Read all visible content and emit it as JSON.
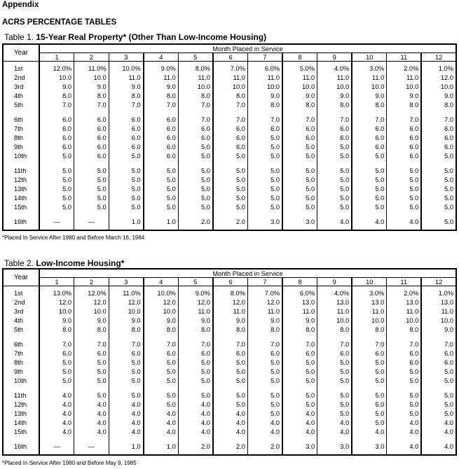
{
  "header": {
    "appendix": "Appendix",
    "title": "ACRS PERCENTAGE TABLES"
  },
  "tables": [
    {
      "caption_prefix": "Table 1. ",
      "caption_bold": "15-Year Real Property*",
      "caption_suffix": " (Other Than Low-Income Housing)",
      "year_header": "Year",
      "group_header": "Month Placed in Service",
      "months": [
        "1",
        "2",
        "3",
        "4",
        "5",
        "6",
        "7",
        "8",
        "9",
        "10",
        "11",
        "12"
      ],
      "rows": [
        {
          "year": "1st",
          "values": [
            "12.0%",
            "11.0%",
            "10.0%",
            "9.0%",
            "8.0%",
            "7.0%",
            "6.0%",
            "5.0%",
            "4.0%",
            "3.0%",
            "2.0%",
            "1.0%"
          ]
        },
        {
          "year": "2nd",
          "values": [
            "10.0",
            "10.0",
            "11.0",
            "11.0",
            "11.0",
            "11.0",
            "11.0",
            "11.0",
            "11.0",
            "11.0",
            "11.0",
            "12.0"
          ]
        },
        {
          "year": "3rd",
          "values": [
            "9.0",
            "9.0",
            "9.0",
            "9.0",
            "10.0",
            "10.0",
            "10.0",
            "10.0",
            "10.0",
            "10.0",
            "10.0",
            "10.0"
          ]
        },
        {
          "year": "4th",
          "values": [
            "8.0",
            "8.0",
            "8.0",
            "8.0",
            "8.0",
            "8.0",
            "9.0",
            "9.0",
            "9.0",
            "9.0",
            "9.0",
            "9.0"
          ]
        },
        {
          "year": "5th",
          "values": [
            "7.0",
            "7.0",
            "7.0",
            "7.0",
            "7.0",
            "7.0",
            "8.0",
            "8.0",
            "8.0",
            "8.0",
            "8.0",
            "8.0"
          ]
        },
        {
          "year": "6th",
          "values": [
            "6.0",
            "6.0",
            "6.0",
            "6.0",
            "7.0",
            "7.0",
            "7.0",
            "7.0",
            "7.0",
            "7.0",
            "7.0",
            "7.0"
          ]
        },
        {
          "year": "7th",
          "values": [
            "6.0",
            "6.0",
            "6.0",
            "6.0",
            "6.0",
            "6.0",
            "6.0",
            "6.0",
            "6.0",
            "6.0",
            "6.0",
            "6.0"
          ]
        },
        {
          "year": "8th",
          "values": [
            "6.0",
            "6.0",
            "6.0",
            "6.0",
            "6.0",
            "6.0",
            "5.0",
            "6.0",
            "6.0",
            "6.0",
            "6.0",
            "6.0"
          ]
        },
        {
          "year": "9th",
          "values": [
            "6.0",
            "6.0",
            "6.0",
            "6.0",
            "5.0",
            "6.0",
            "5.0",
            "5.0",
            "5.0",
            "6.0",
            "6.0",
            "6.0"
          ]
        },
        {
          "year": "10th",
          "values": [
            "5.0",
            "6.0",
            "5.0",
            "6.0",
            "5.0",
            "5.0",
            "5.0",
            "5.0",
            "5.0",
            "5.0",
            "6.0",
            "5.0"
          ]
        },
        {
          "year": "11th",
          "values": [
            "5.0",
            "5.0",
            "5.0",
            "5.0",
            "5.0",
            "5.0",
            "5.0",
            "5.0",
            "5.0",
            "5.0",
            "5.0",
            "5.0"
          ]
        },
        {
          "year": "12th",
          "values": [
            "5.0",
            "5.0",
            "5.0",
            "5.0",
            "5.0",
            "5.0",
            "5.0",
            "5.0",
            "5.0",
            "5.0",
            "5.0",
            "5.0"
          ]
        },
        {
          "year": "13th",
          "values": [
            "5.0",
            "5.0",
            "5.0",
            "5.0",
            "5.0",
            "5.0",
            "5.0",
            "5.0",
            "5.0",
            "5.0",
            "5.0",
            "5.0"
          ]
        },
        {
          "year": "14th",
          "values": [
            "5.0",
            "5.0",
            "5.0",
            "5.0",
            "5.0",
            "5.0",
            "5.0",
            "5.0",
            "5.0",
            "5.0",
            "5.0",
            "5.0"
          ]
        },
        {
          "year": "15th",
          "values": [
            "5.0",
            "5.0",
            "5.0",
            "5.0",
            "5.0",
            "5.0",
            "5.0",
            "5.0",
            "5.0",
            "5.0",
            "5.0",
            "5.0"
          ]
        },
        {
          "year": "16th",
          "values": [
            "—",
            "—",
            "1.0",
            "1.0",
            "2.0",
            "2.0",
            "3.0",
            "3.0",
            "4.0",
            "4.0",
            "4.0",
            "5.0"
          ]
        }
      ],
      "footnote": "*Placed In Service After 1980 and Before March 16, 1984"
    },
    {
      "caption_prefix": "Table 2. ",
      "caption_bold": "Low-Income Housing*",
      "caption_suffix": "",
      "year_header": "Year",
      "group_header": "Month Placed in Service",
      "months": [
        "1",
        "2",
        "3",
        "4",
        "5",
        "6",
        "7",
        "8",
        "9",
        "10",
        "11",
        "12"
      ],
      "rows": [
        {
          "year": "1st",
          "values": [
            "13.0%",
            "12.0%",
            "11.0%",
            "10.0%",
            "9.0%",
            "8.0%",
            "7.0%",
            "6.0%",
            "4.0%",
            "3.0%",
            "2.0%",
            "1.0%"
          ]
        },
        {
          "year": "2nd",
          "values": [
            "12.0",
            "12.0",
            "12.0",
            "12.0",
            "12.0",
            "12.0",
            "12.0",
            "13.0",
            "13.0",
            "13.0",
            "13.0",
            "13.0"
          ]
        },
        {
          "year": "3rd",
          "values": [
            "10.0",
            "10.0",
            "10.0",
            "10.0",
            "11.0",
            "11.0",
            "11.0",
            "11.0",
            "11.0",
            "11.0",
            "11.0",
            "11.0"
          ]
        },
        {
          "year": "4th",
          "values": [
            "9.0",
            "9.0",
            "9.0",
            "9.0",
            "9.0",
            "9.0",
            "9.0",
            "9.0",
            "10.0",
            "10.0",
            "10.0",
            "10.0"
          ]
        },
        {
          "year": "5th",
          "values": [
            "8.0",
            "8.0",
            "8.0",
            "8.0",
            "8.0",
            "8.0",
            "8.0",
            "8.0",
            "8.0",
            "8.0",
            "8.0",
            "9.0"
          ]
        },
        {
          "year": "6th",
          "values": [
            "7.0",
            "7.0",
            "7.0",
            "7.0",
            "7.0",
            "7.0",
            "7.0",
            "7.0",
            "7.0",
            "7.0",
            "7.0",
            "7.0"
          ]
        },
        {
          "year": "7th",
          "values": [
            "6.0",
            "6.0",
            "6.0",
            "6.0",
            "6.0",
            "6.0",
            "6.0",
            "6.0",
            "6.0",
            "6.0",
            "6.0",
            "6.0"
          ]
        },
        {
          "year": "8th",
          "values": [
            "5.0",
            "5.0",
            "5.0",
            "5.0",
            "5.0",
            "5.0",
            "5.0",
            "5.0",
            "5.0",
            "5.0",
            "6.0",
            "6.0"
          ]
        },
        {
          "year": "9th",
          "values": [
            "5.0",
            "5.0",
            "5.0",
            "5.0",
            "5.0",
            "5.0",
            "5.0",
            "5.0",
            "5.0",
            "5.0",
            "5.0",
            "5.0"
          ]
        },
        {
          "year": "10th",
          "values": [
            "5.0",
            "5.0",
            "5.0",
            "5.0",
            "5.0",
            "5.0",
            "5.0",
            "5.0",
            "5.0",
            "5.0",
            "5.0",
            "5.0"
          ]
        },
        {
          "year": "11th",
          "values": [
            "4.0",
            "5.0",
            "5.0",
            "5.0",
            "5.0",
            "5.0",
            "5.0",
            "5.0",
            "5.0",
            "5.0",
            "5.0",
            "5.0"
          ]
        },
        {
          "year": "12th",
          "values": [
            "4.0",
            "4.0",
            "4.0",
            "5.0",
            "4.0",
            "5.0",
            "5.0",
            "5.0",
            "5.0",
            "5.0",
            "5.0",
            "5.0"
          ]
        },
        {
          "year": "13th",
          "values": [
            "4.0",
            "4.0",
            "4.0",
            "4.0",
            "4.0",
            "4.0",
            "5.0",
            "4.0",
            "5.0",
            "5.0",
            "5.0",
            "5.0"
          ]
        },
        {
          "year": "14th",
          "values": [
            "4.0",
            "4.0",
            "4.0",
            "4.0",
            "4.0",
            "4.0",
            "4.0",
            "4.0",
            "4.0",
            "5.0",
            "4.0",
            "4.0"
          ]
        },
        {
          "year": "15th",
          "values": [
            "4.0",
            "4.0",
            "4.0",
            "4.0",
            "4.0",
            "4.0",
            "4.0",
            "4.0",
            "4.0",
            "4.0",
            "4.0",
            "4.0"
          ]
        },
        {
          "year": "16th",
          "values": [
            "—",
            "—",
            "1.0",
            "1.0",
            "2.0",
            "2.0",
            "2.0",
            "3.0",
            "3.0",
            "3.0",
            "4.0",
            "4.0"
          ]
        }
      ],
      "footnote": "*Placed In Service After 1980 and Before May 9, 1985"
    }
  ]
}
